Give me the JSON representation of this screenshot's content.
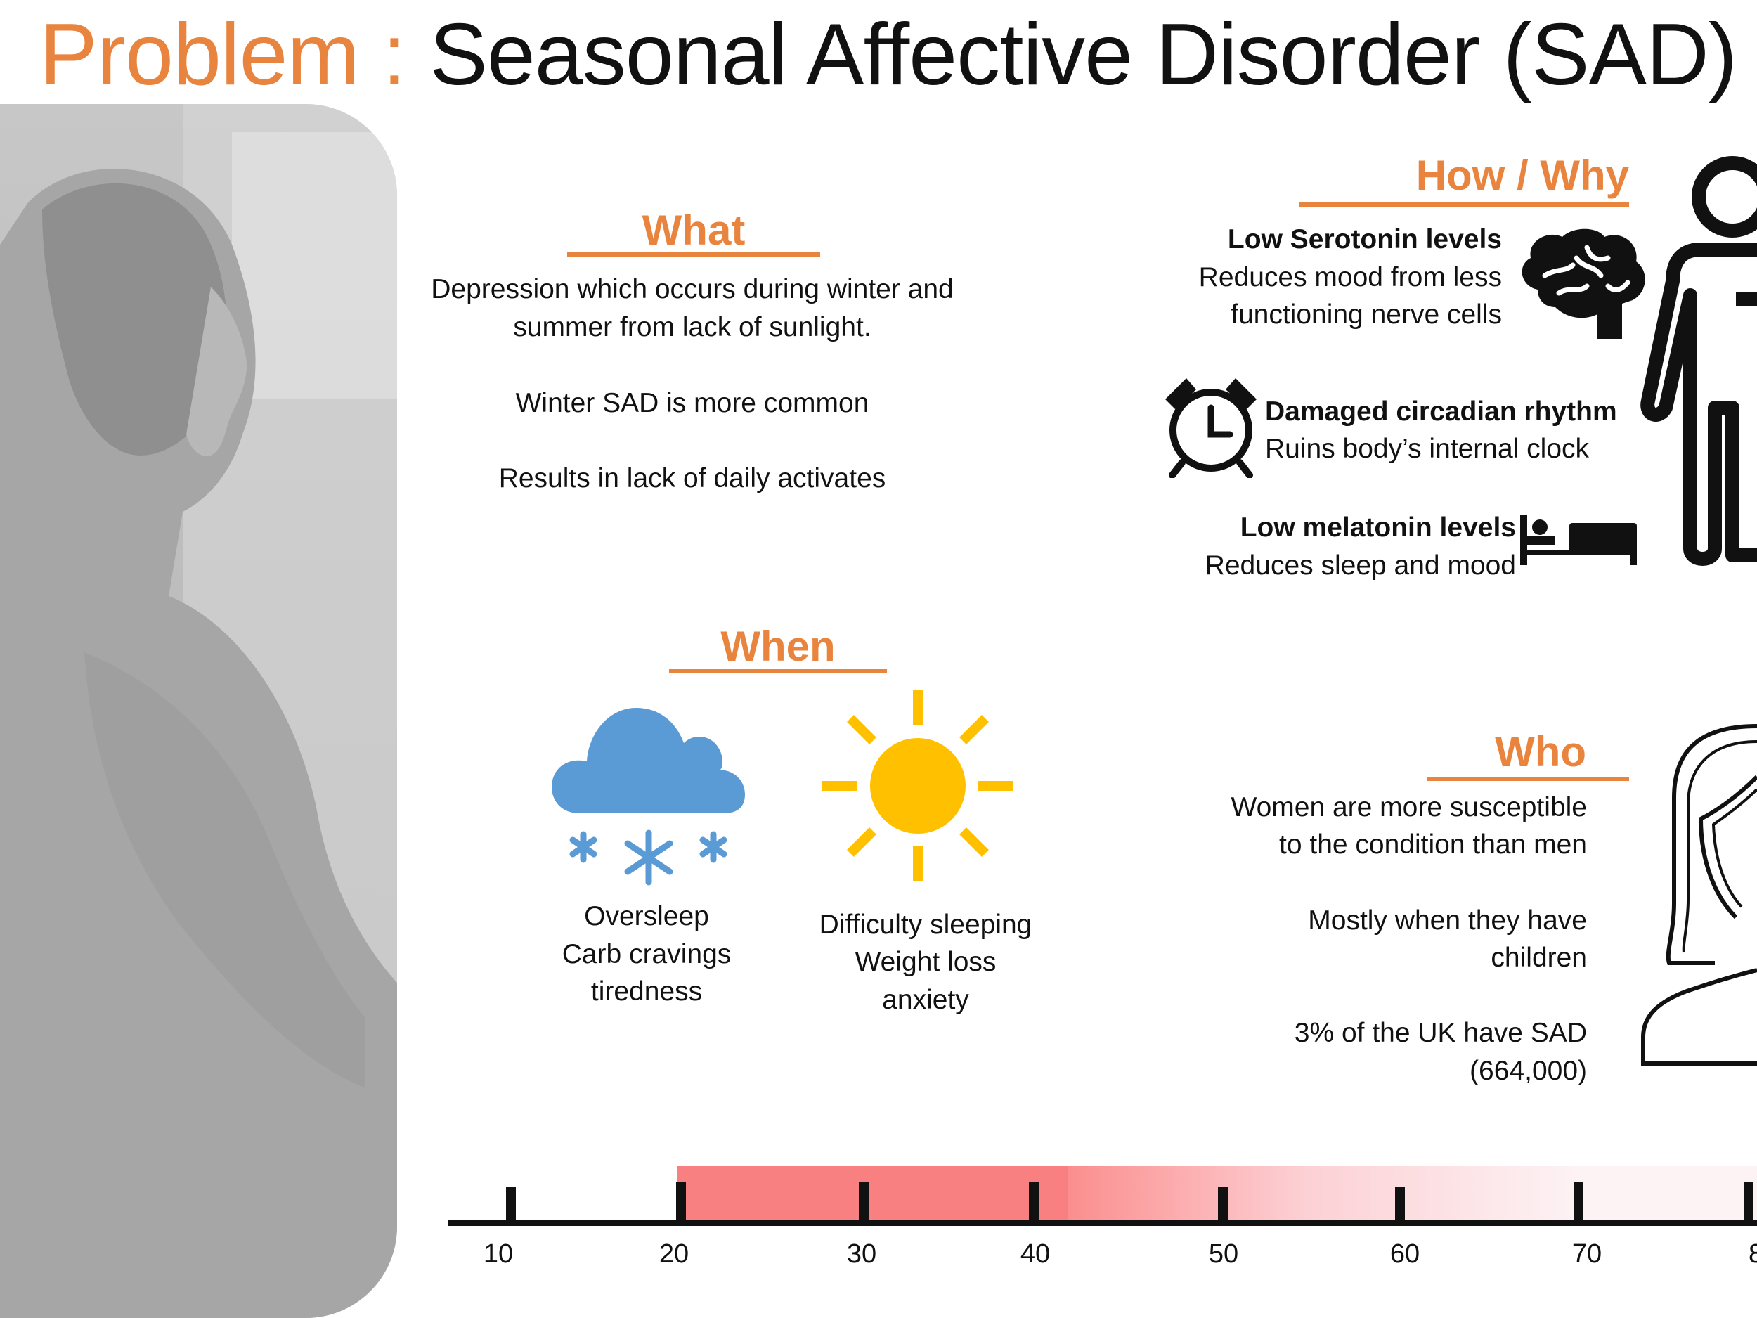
{
  "title": {
    "prefix": "Problem :",
    "main": "Seasonal Affective Disorder (SAD)"
  },
  "what": {
    "heading": "What",
    "lines": [
      "Depression which occurs  during winter and",
      "summer from lack of sunlight.",
      "Winter SAD is more common",
      "Results in lack of daily activates"
    ]
  },
  "how_why": {
    "heading": "How / Why",
    "items": [
      {
        "title": "Low Serotonin levels",
        "lines": [
          "Reduces mood from less",
          "functioning nerve cells"
        ],
        "icon": "brain-icon"
      },
      {
        "title": "Damaged circadian rhythm",
        "lines": [
          "Ruins body’s internal clock"
        ],
        "icon": "alarm-clock-icon"
      },
      {
        "title": "Low melatonin levels",
        "lines": [
          "Reduces sleep and mood"
        ],
        "icon": "bed-icon"
      }
    ]
  },
  "when": {
    "heading": "When",
    "winter": {
      "icon": "snow-cloud-icon",
      "lines": [
        "Oversleep",
        "Carb cravings",
        "tiredness"
      ]
    },
    "summer": {
      "icon": "sun-icon",
      "lines": [
        "Difficulty sleeping",
        "Weight loss",
        "anxiety"
      ]
    }
  },
  "who": {
    "heading": "Who",
    "lines": [
      "Women are more susceptible",
      "to the condition than men",
      "Mostly when they have",
      "children",
      "3% of the UK have SAD",
      "(664,000)"
    ]
  },
  "age_scale": {
    "ticks": [
      "10",
      "20",
      "30",
      "40",
      "50",
      "60",
      "70",
      "8"
    ],
    "peak_range": [
      20,
      41
    ],
    "colors": {
      "peak": "#f98080",
      "fade_start": "#fb8e8e",
      "fade_end": "#fdf3f5"
    }
  },
  "colors": {
    "accent": "#e8843d",
    "cloud": "#5b9bd5",
    "sun": "#ffc000"
  }
}
